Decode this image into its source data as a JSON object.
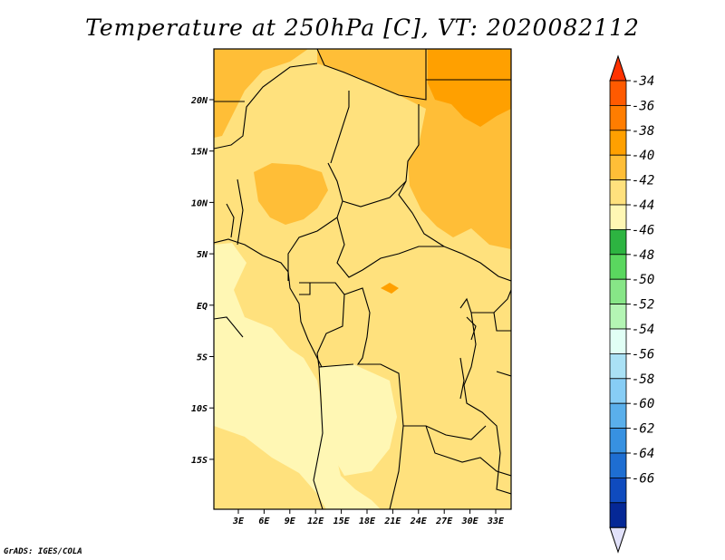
{
  "title": "Temperature at 250hPa [C], VT: 2020082112",
  "footer": "GrADS: IGES/COLA",
  "map": {
    "lon_ticks": [
      "3E",
      "6E",
      "9E",
      "12E",
      "15E",
      "18E",
      "21E",
      "24E",
      "27E",
      "30E",
      "33E"
    ],
    "lat_ticks": [
      "20N",
      "15N",
      "10N",
      "5N",
      "EQ",
      "5S",
      "10S",
      "15S"
    ]
  },
  "colorbar": {
    "labels": [
      "-34",
      "-36",
      "-38",
      "-40",
      "-42",
      "-44",
      "-46",
      "-48",
      "-50",
      "-52",
      "-54",
      "-56",
      "-58",
      "-60",
      "-62",
      "-64",
      "-66"
    ],
    "colors": [
      "#ff5a00",
      "#ff7d00",
      "#ffa000",
      "#ffbe37",
      "#ffe17d",
      "#fff7b4",
      "#2db441",
      "#5ad75f",
      "#87e687",
      "#b4f5b4",
      "#e1fff5",
      "#aae1f5",
      "#87cdf5",
      "#5aafeb",
      "#3791e1",
      "#1e6ed2",
      "#0f4bbe",
      "#052896"
    ],
    "top_arrow_color": "#ff3200",
    "bottom_arrow_color": "#e1e1fa"
  }
}
